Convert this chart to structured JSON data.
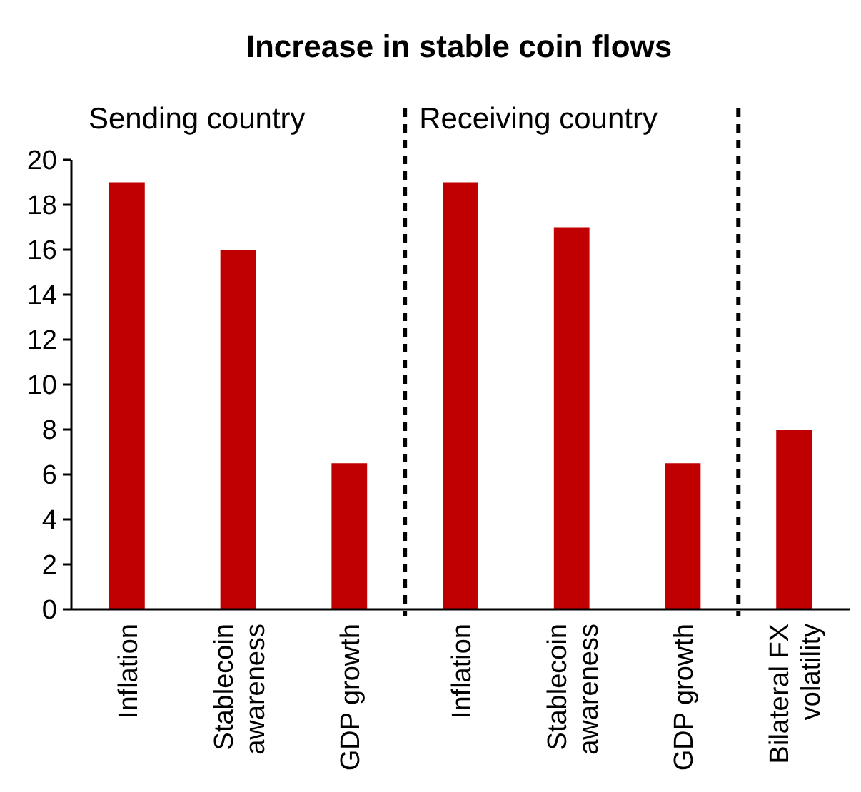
{
  "chart_data": {
    "type": "bar",
    "title": "Increase in stable coin flows",
    "categories": [
      "Inflation",
      "Stablecoin awareness",
      "GDP growth",
      "Inflation",
      "Stablecoin awareness",
      "GDP growth",
      "Bilateral FX volatility"
    ],
    "values": [
      19,
      16,
      6.5,
      19,
      17,
      6.5,
      8
    ],
    "color": "#c00000",
    "ylim": [
      0,
      20
    ],
    "yticks": [
      0,
      2,
      4,
      6,
      8,
      10,
      12,
      14,
      16,
      18,
      20
    ],
    "grid": false,
    "annotations": [
      "Sending country",
      "Receiving country"
    ]
  }
}
